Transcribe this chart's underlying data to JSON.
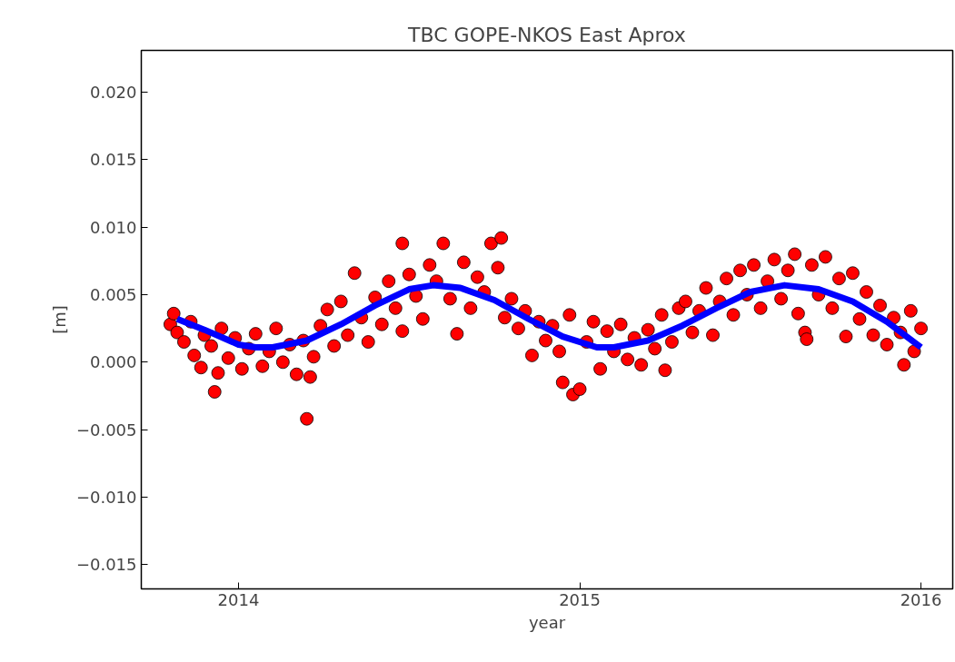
{
  "chart_data": {
    "type": "scatter",
    "title": "TBC GOPE-NKOS East Aprox",
    "xlabel": "year",
    "ylabel": "[m]",
    "xlim": [
      2013.715,
      2016.093
    ],
    "ylim": [
      -0.0168,
      0.0231
    ],
    "xticks": [
      2014,
      2015,
      2016
    ],
    "yticks": [
      {
        "value": -0.015,
        "label": "−0.015"
      },
      {
        "value": -0.01,
        "label": "−0.010"
      },
      {
        "value": -0.005,
        "label": "−0.005"
      },
      {
        "value": 0,
        "label": "0.000"
      },
      {
        "value": 0.005,
        "label": "0.005"
      },
      {
        "value": 0.01,
        "label": "0.010"
      },
      {
        "value": 0.015,
        "label": "0.015"
      },
      {
        "value": 0.02,
        "label": "0.020"
      }
    ],
    "grid": false,
    "marker": "circle",
    "series": [
      {
        "color": "#ff0000",
        "x": [
          2013.8,
          2013.81,
          2013.82,
          2013.84,
          2013.86,
          2013.87,
          2013.89,
          2013.9,
          2013.92,
          2013.94,
          2013.95,
          2013.97,
          2013.99,
          2014.01,
          2014.03,
          2014.05,
          2014.07,
          2014.09,
          2014.11,
          2014.13,
          2014.15,
          2014.17,
          2014.19,
          2014.22,
          2014.24,
          2014.26,
          2014.28,
          2014.3,
          2014.32,
          2014.34,
          2014.36,
          2014.38,
          2014.4,
          2014.42,
          2014.44,
          2014.46,
          2014.48,
          2014.5,
          2014.52,
          2014.54,
          2014.56,
          2014.58,
          2014.62,
          2014.64,
          2014.66,
          2014.68,
          2014.7,
          2014.72,
          2014.76,
          2014.78,
          2014.8,
          2014.82,
          2014.84,
          2014.86,
          2014.88,
          2014.9,
          2014.92,
          2014.94,
          2014.97,
          2015.02,
          2015.04,
          2015.06,
          2015.08,
          2015.1,
          2015.12,
          2015.14,
          2015.16,
          2015.18,
          2015.2,
          2015.22,
          2015.24,
          2015.27,
          2015.29,
          2015.33,
          2015.35,
          2015.37,
          2015.39,
          2015.41,
          2015.43,
          2015.45,
          2015.49,
          2015.51,
          2015.53,
          2015.55,
          2015.57,
          2015.59,
          2015.61,
          2015.63,
          2015.64,
          2015.68,
          2015.7,
          2015.72,
          2015.74,
          2015.76,
          2015.8,
          2015.82,
          2015.84,
          2015.86,
          2015.88,
          2015.9,
          2015.92,
          2015.94,
          2015.97,
          2015.98,
          2016.0,
          2013.93,
          2014.2,
          2014.21,
          2014.48,
          2014.6,
          2014.74,
          2014.77,
          2014.95,
          2014.98,
          2015.0,
          2015.25,
          2015.31,
          2015.47,
          2015.66,
          2015.665,
          2015.78,
          2015.95
        ],
        "values": [
          0.0028,
          0.0036,
          0.0022,
          0.0015,
          0.003,
          0.0005,
          -0.0004,
          0.002,
          0.0012,
          -0.0008,
          0.0025,
          0.0003,
          0.0018,
          -0.0005,
          0.001,
          0.0021,
          -0.0003,
          0.0008,
          0.0025,
          0.0,
          0.0013,
          -0.0009,
          0.0016,
          0.0004,
          0.0027,
          0.0039,
          0.0012,
          0.0045,
          0.002,
          0.0066,
          0.0033,
          0.0015,
          0.0048,
          0.0028,
          0.006,
          0.004,
          0.0023,
          0.0065,
          0.0049,
          0.0032,
          0.0072,
          0.006,
          0.0047,
          0.0021,
          0.0074,
          0.004,
          0.0063,
          0.0052,
          0.007,
          0.0033,
          0.0047,
          0.0025,
          0.0038,
          0.0005,
          0.003,
          0.0016,
          0.0027,
          0.0008,
          0.0035,
          0.0015,
          0.003,
          -0.0005,
          0.0023,
          0.0008,
          0.0028,
          0.0002,
          0.0018,
          -0.0002,
          0.0024,
          0.001,
          0.0035,
          0.0015,
          0.004,
          0.0022,
          0.0038,
          0.0055,
          0.002,
          0.0045,
          0.0062,
          0.0035,
          0.005,
          0.0072,
          0.004,
          0.006,
          0.0076,
          0.0047,
          0.0068,
          0.008,
          0.0036,
          0.0072,
          0.005,
          0.0078,
          0.004,
          0.0062,
          0.0066,
          0.0032,
          0.0052,
          0.002,
          0.0042,
          0.0013,
          0.0033,
          0.0022,
          0.0038,
          0.0008,
          0.0025,
          -0.0022,
          -0.0042,
          -0.0011,
          0.0088,
          0.0088,
          0.0088,
          0.0092,
          -0.0015,
          -0.0024,
          -0.002,
          -0.0006,
          0.0045,
          0.0068,
          0.0022,
          0.0017,
          0.0019,
          -0.0002
        ]
      },
      {
        "type": "line",
        "marker": "none",
        "color": "#0000ff",
        "x": [
          2013.82,
          2013.9,
          2014.0,
          2014.05,
          2014.1,
          2014.2,
          2014.3,
          2014.4,
          2014.5,
          2014.57,
          2014.65,
          2014.75,
          2014.85,
          2014.95,
          2015.05,
          2015.1,
          2015.2,
          2015.3,
          2015.4,
          2015.5,
          2015.6,
          2015.7,
          2015.8,
          2015.9,
          2016.0
        ],
        "values": [
          0.0032,
          0.0024,
          0.0013,
          0.0011,
          0.0011,
          0.0016,
          0.0028,
          0.0042,
          0.0054,
          0.0057,
          0.0055,
          0.0046,
          0.0032,
          0.0019,
          0.0011,
          0.0011,
          0.0016,
          0.0027,
          0.004,
          0.0052,
          0.0057,
          0.0054,
          0.0045,
          0.003,
          0.0011
        ]
      }
    ]
  }
}
